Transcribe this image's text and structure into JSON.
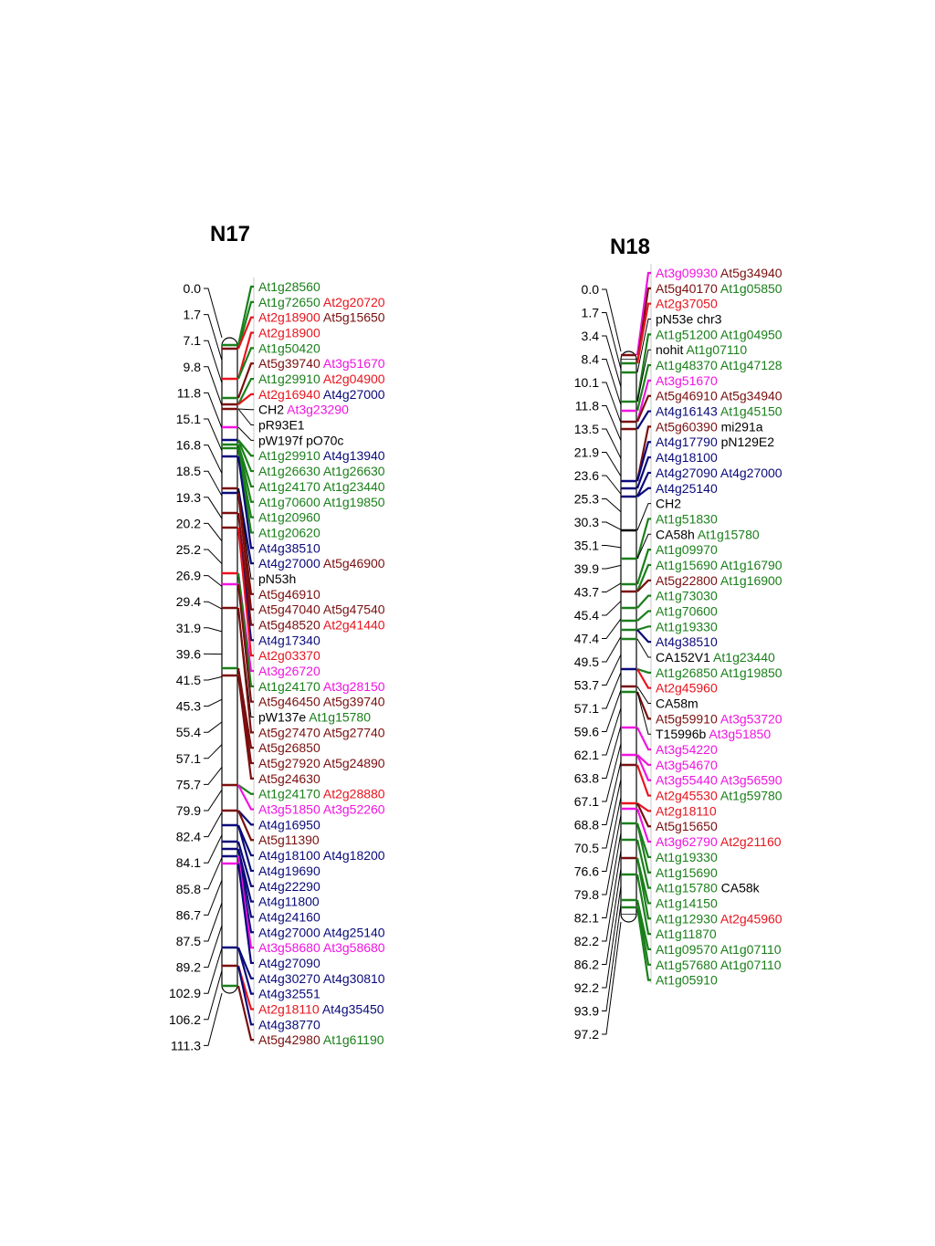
{
  "colors": {
    "green": "#1a7f1a",
    "darkred": "#7a0f0f",
    "red": "#e8141e",
    "magenta": "#f014e0",
    "navy": "#0a0a7a",
    "black": "#000000"
  },
  "chromosomes": [
    {
      "id": "N17",
      "name": "N17",
      "positions": [
        "0.0",
        "1.7",
        "7.1",
        "9.8",
        "11.8",
        "15.1",
        "16.8",
        "18.5",
        "19.3",
        "20.2",
        "25.2",
        "26.9",
        "29.4",
        "31.9",
        "39.6",
        "41.5",
        "45.3",
        "55.4",
        "57.1",
        "75.7",
        "79.9",
        "82.4",
        "84.1",
        "85.8",
        "86.7",
        "87.5",
        "89.2",
        "102.9",
        "106.2",
        "111.3"
      ],
      "rows": [
        [
          {
            "t": "At1g28560",
            "c": "green"
          }
        ],
        [
          {
            "t": "At1g72650",
            "c": "green"
          },
          {
            "t": "At2g20720",
            "c": "red"
          }
        ],
        [
          {
            "t": "At2g18900",
            "c": "red"
          },
          {
            "t": "At5g15650",
            "c": "darkred"
          }
        ],
        [
          {
            "t": "At2g18900",
            "c": "red"
          }
        ],
        [
          {
            "t": "At1g50420",
            "c": "green"
          }
        ],
        [
          {
            "t": "At5g39740",
            "c": "darkred"
          },
          {
            "t": "At3g51670",
            "c": "magenta"
          }
        ],
        [
          {
            "t": "At1g29910",
            "c": "green"
          },
          {
            "t": "At2g04900",
            "c": "red"
          }
        ],
        [
          {
            "t": "At2g16940",
            "c": "red"
          },
          {
            "t": "At4g27000",
            "c": "navy"
          }
        ],
        [
          {
            "t": "CH2",
            "c": "black"
          },
          {
            "t": "At3g23290",
            "c": "magenta"
          }
        ],
        [
          {
            "t": "pR93E1",
            "c": "black"
          }
        ],
        [
          {
            "t": "pW197f",
            "c": "black"
          },
          {
            "t": "pO70c",
            "c": "black"
          }
        ],
        [
          {
            "t": "At1g29910",
            "c": "green"
          },
          {
            "t": "At4g13940",
            "c": "navy"
          }
        ],
        [
          {
            "t": "At1g26630",
            "c": "green"
          },
          {
            "t": "At1g26630",
            "c": "green"
          }
        ],
        [
          {
            "t": "At1g24170",
            "c": "green"
          },
          {
            "t": "At1g23440",
            "c": "green"
          }
        ],
        [
          {
            "t": "At1g70600",
            "c": "green"
          },
          {
            "t": "At1g19850",
            "c": "green"
          }
        ],
        [
          {
            "t": "At1g20960",
            "c": "green"
          }
        ],
        [
          {
            "t": "At1g20620",
            "c": "green"
          }
        ],
        [
          {
            "t": "At4g38510",
            "c": "navy"
          }
        ],
        [
          {
            "t": "At4g27000",
            "c": "navy"
          },
          {
            "t": "At5g46900",
            "c": "darkred"
          }
        ],
        [
          {
            "t": "pN53h",
            "c": "black"
          }
        ],
        [
          {
            "t": "At5g46910",
            "c": "darkred"
          }
        ],
        [
          {
            "t": "At5g47040",
            "c": "darkred"
          },
          {
            "t": "At5g47540",
            "c": "darkred"
          }
        ],
        [
          {
            "t": "At5g48520",
            "c": "darkred"
          },
          {
            "t": "At2g41440",
            "c": "red"
          }
        ],
        [
          {
            "t": "At4g17340",
            "c": "navy"
          }
        ],
        [
          {
            "t": "At2g03370",
            "c": "red"
          }
        ],
        [
          {
            "t": "At3g26720",
            "c": "magenta"
          }
        ],
        [
          {
            "t": "At1g24170",
            "c": "green"
          },
          {
            "t": "At3g28150",
            "c": "magenta"
          }
        ],
        [
          {
            "t": "At5g46450",
            "c": "darkred"
          },
          {
            "t": "At5g39740",
            "c": "darkred"
          }
        ],
        [
          {
            "t": "pW137e",
            "c": "black"
          },
          {
            "t": "At1g15780",
            "c": "green"
          }
        ],
        [
          {
            "t": "At5g27470",
            "c": "darkred"
          },
          {
            "t": "At5g27740",
            "c": "darkred"
          }
        ],
        [
          {
            "t": "At5g26850",
            "c": "darkred"
          }
        ],
        [
          {
            "t": "At5g27920",
            "c": "darkred"
          },
          {
            "t": "At5g24890",
            "c": "darkred"
          }
        ],
        [
          {
            "t": "At5g24630",
            "c": "darkred"
          }
        ],
        [
          {
            "t": "At1g24170",
            "c": "green"
          },
          {
            "t": "At2g28880",
            "c": "red"
          }
        ],
        [
          {
            "t": "At3g51850",
            "c": "magenta"
          },
          {
            "t": "At3g52260",
            "c": "magenta"
          }
        ],
        [
          {
            "t": "At4g16950",
            "c": "navy"
          }
        ],
        [
          {
            "t": "At5g11390",
            "c": "darkred"
          }
        ],
        [
          {
            "t": "At4g18100",
            "c": "navy"
          },
          {
            "t": "At4g18200",
            "c": "navy"
          }
        ],
        [
          {
            "t": "At4g19690",
            "c": "navy"
          }
        ],
        [
          {
            "t": "At4g22290",
            "c": "navy"
          }
        ],
        [
          {
            "t": "At4g11800",
            "c": "navy"
          }
        ],
        [
          {
            "t": "At4g24160",
            "c": "navy"
          }
        ],
        [
          {
            "t": "At4g27000",
            "c": "navy"
          },
          {
            "t": "At4g25140",
            "c": "navy"
          }
        ],
        [
          {
            "t": "At3g58680",
            "c": "magenta"
          },
          {
            "t": "At3g58680",
            "c": "magenta"
          }
        ],
        [
          {
            "t": "At4g27090",
            "c": "navy"
          }
        ],
        [
          {
            "t": "At4g30270",
            "c": "navy"
          },
          {
            "t": "At4g30810",
            "c": "navy"
          }
        ],
        [
          {
            "t": "At4g32551",
            "c": "navy"
          }
        ],
        [
          {
            "t": "At2g18110",
            "c": "red"
          },
          {
            "t": "At4g35450",
            "c": "navy"
          }
        ],
        [
          {
            "t": "At4g38770",
            "c": "navy"
          }
        ],
        [
          {
            "t": "At5g42980",
            "c": "darkred"
          },
          {
            "t": "At1g61190",
            "c": "green"
          }
        ]
      ]
    },
    {
      "id": "N18",
      "name": "N18",
      "positions": [
        "0.0",
        "1.7",
        "3.4",
        "8.4",
        "10.1",
        "11.8",
        "13.5",
        "21.9",
        "23.6",
        "25.3",
        "30.3",
        "35.1",
        "39.9",
        "43.7",
        "45.4",
        "47.4",
        "49.5",
        "53.7",
        "57.1",
        "59.6",
        "62.1",
        "63.8",
        "67.1",
        "68.8",
        "70.5",
        "76.6",
        "79.8",
        "82.1",
        "82.2",
        "86.2",
        "92.2",
        "93.9",
        "97.2"
      ],
      "rows": [
        [
          {
            "t": "At3g09930",
            "c": "magenta"
          },
          {
            "t": "At5g34940",
            "c": "darkred"
          }
        ],
        [
          {
            "t": "At5g40170",
            "c": "darkred"
          },
          {
            "t": "At1g05850",
            "c": "green"
          }
        ],
        [
          {
            "t": "At2g37050",
            "c": "red"
          }
        ],
        [
          {
            "t": "pN53e",
            "c": "black"
          },
          {
            "t": "chr3",
            "c": "black"
          }
        ],
        [
          {
            "t": "At1g51200",
            "c": "green"
          },
          {
            "t": "At1g04950",
            "c": "green"
          }
        ],
        [
          {
            "t": "nohit",
            "c": "black"
          },
          {
            "t": "At1g07110",
            "c": "green"
          }
        ],
        [
          {
            "t": "At1g48370",
            "c": "green"
          },
          {
            "t": "At1g47128",
            "c": "green"
          }
        ],
        [
          {
            "t": "At3g51670",
            "c": "magenta"
          }
        ],
        [
          {
            "t": "At5g46910",
            "c": "darkred"
          },
          {
            "t": "At5g34940",
            "c": "darkred"
          }
        ],
        [
          {
            "t": "At4g16143",
            "c": "navy"
          },
          {
            "t": "At1g45150",
            "c": "green"
          }
        ],
        [
          {
            "t": "At5g60390",
            "c": "darkred"
          },
          {
            "t": "mi291a",
            "c": "black"
          }
        ],
        [
          {
            "t": "At4g17790",
            "c": "navy"
          },
          {
            "t": "pN129E2",
            "c": "black"
          }
        ],
        [
          {
            "t": "At4g18100",
            "c": "navy"
          }
        ],
        [
          {
            "t": "At4g27090",
            "c": "navy"
          },
          {
            "t": "At4g27000",
            "c": "navy"
          }
        ],
        [
          {
            "t": "At4g25140",
            "c": "navy"
          }
        ],
        [
          {
            "t": "CH2",
            "c": "black"
          }
        ],
        [
          {
            "t": "At1g51830",
            "c": "green"
          }
        ],
        [
          {
            "t": "CA58h",
            "c": "black"
          },
          {
            "t": "At1g15780",
            "c": "green"
          }
        ],
        [
          {
            "t": "At1g09970",
            "c": "green"
          }
        ],
        [
          {
            "t": "At1g15690",
            "c": "green"
          },
          {
            "t": "At1g16790",
            "c": "green"
          }
        ],
        [
          {
            "t": "At5g22800",
            "c": "darkred"
          },
          {
            "t": "At1g16900",
            "c": "green"
          }
        ],
        [
          {
            "t": "At1g73030",
            "c": "green"
          }
        ],
        [
          {
            "t": "At1g70600",
            "c": "green"
          }
        ],
        [
          {
            "t": "At1g19330",
            "c": "green"
          }
        ],
        [
          {
            "t": "At4g38510",
            "c": "navy"
          }
        ],
        [
          {
            "t": "CA152V1",
            "c": "black"
          },
          {
            "t": "At1g23440",
            "c": "green"
          }
        ],
        [
          {
            "t": "At1g26850",
            "c": "green"
          },
          {
            "t": "At1g19850",
            "c": "green"
          }
        ],
        [
          {
            "t": "At2g45960",
            "c": "red"
          }
        ],
        [
          {
            "t": "CA58m",
            "c": "black"
          }
        ],
        [
          {
            "t": "At5g59910",
            "c": "darkred"
          },
          {
            "t": "At3g53720",
            "c": "magenta"
          }
        ],
        [
          {
            "t": "T15996b",
            "c": "black"
          },
          {
            "t": "At3g51850",
            "c": "magenta"
          }
        ],
        [
          {
            "t": "At3g54220",
            "c": "magenta"
          }
        ],
        [
          {
            "t": "At3g54670",
            "c": "magenta"
          }
        ],
        [
          {
            "t": "At3g55440",
            "c": "magenta"
          },
          {
            "t": "At3g56590",
            "c": "magenta"
          }
        ],
        [
          {
            "t": "At2g45530",
            "c": "red"
          },
          {
            "t": "At1g59780",
            "c": "green"
          }
        ],
        [
          {
            "t": "At2g18110",
            "c": "red"
          }
        ],
        [
          {
            "t": "At5g15650",
            "c": "darkred"
          }
        ],
        [
          {
            "t": "At3g62790",
            "c": "magenta"
          },
          {
            "t": "At2g21160",
            "c": "red"
          }
        ],
        [
          {
            "t": "At1g19330",
            "c": "green"
          }
        ],
        [
          {
            "t": "At1g15690",
            "c": "green"
          }
        ],
        [
          {
            "t": "At1g15780",
            "c": "green"
          },
          {
            "t": "CA58k",
            "c": "black"
          }
        ],
        [
          {
            "t": "At1g14150",
            "c": "green"
          }
        ],
        [
          {
            "t": "At1g12930",
            "c": "green"
          },
          {
            "t": "At2g45960",
            "c": "red"
          }
        ],
        [
          {
            "t": "At1g11870",
            "c": "green"
          }
        ],
        [
          {
            "t": "At1g09570",
            "c": "green"
          },
          {
            "t": "At1g07110",
            "c": "green"
          }
        ],
        [
          {
            "t": "At1g57680",
            "c": "green"
          },
          {
            "t": "At1g07110",
            "c": "green"
          }
        ],
        [
          {
            "t": "At1g05910",
            "c": "green"
          }
        ]
      ]
    }
  ]
}
